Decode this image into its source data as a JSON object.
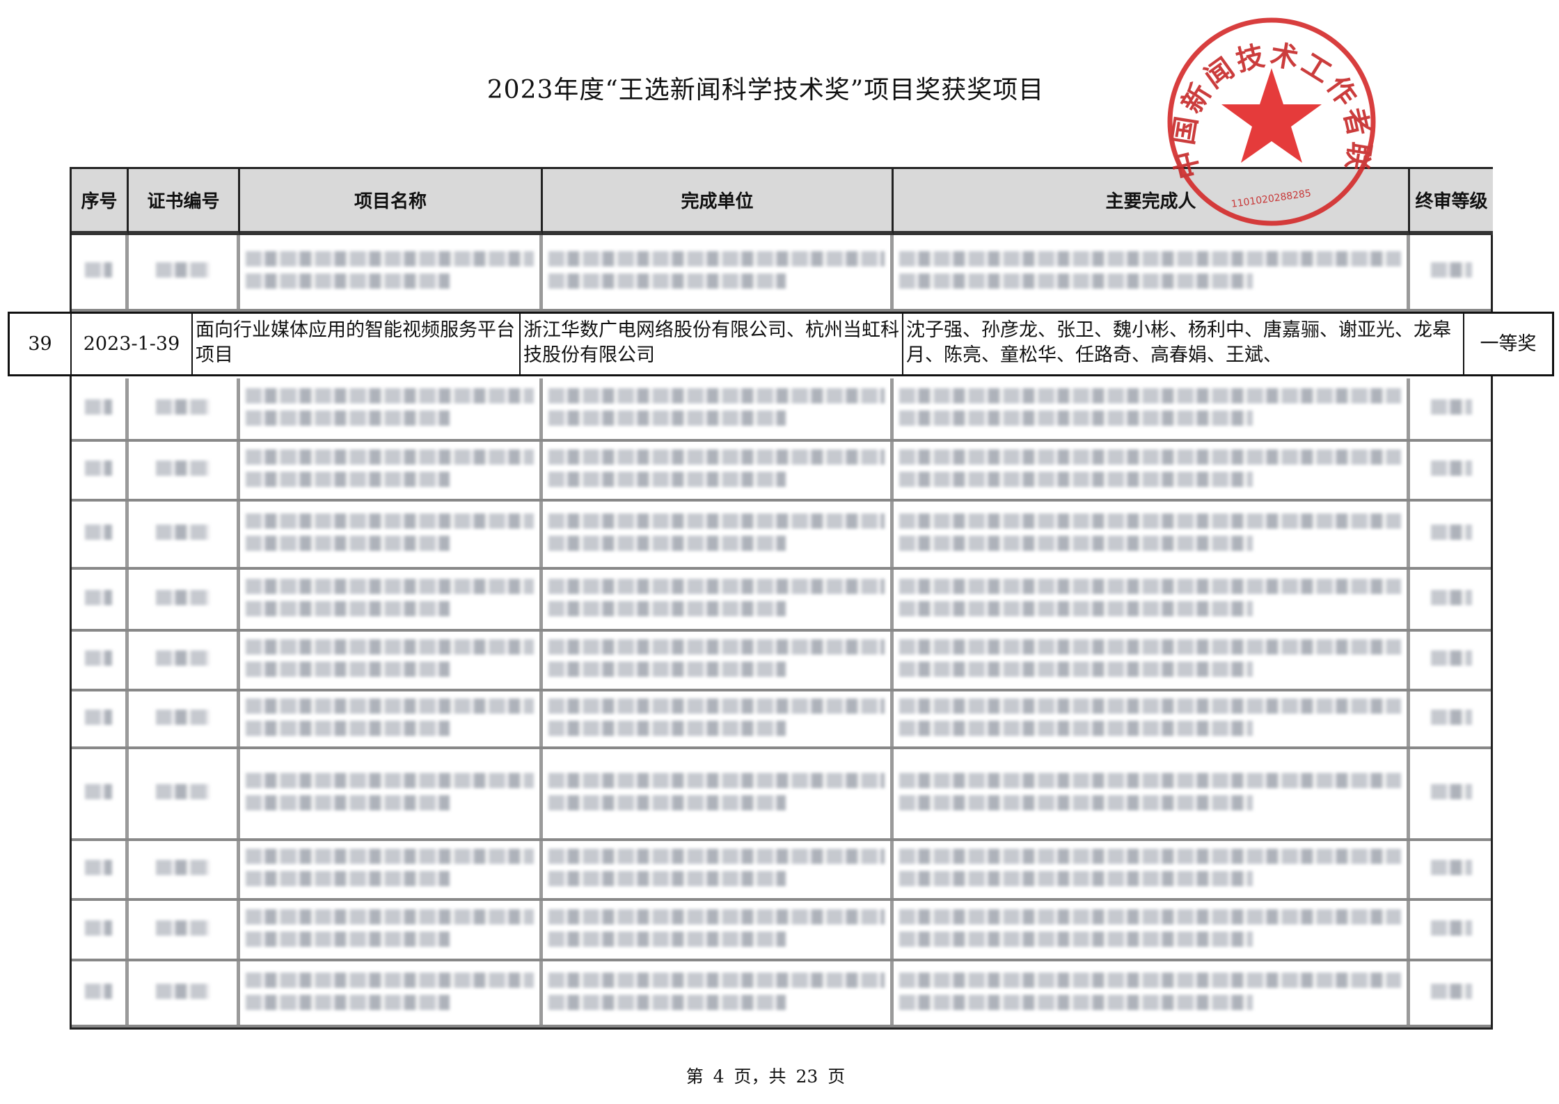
{
  "title": "2023年度“王选新闻科学技术奖”项目奖获奖项目",
  "table": {
    "headers": [
      "序号",
      "证书编号",
      "项目名称",
      "完成单位",
      "主要完成人",
      "终审等级"
    ],
    "highlighted_row": {
      "seq": "39",
      "cert_no": "2023-1-39",
      "project_name": "面向行业媒体应用的智能视频服务平台项目",
      "units": "浙江华数广电网络股份有限公司、杭州当虹科技股份有限公司",
      "persons": "沈子强、孙彦龙、张卫、魏小彬、杨利中、唐嘉骊、谢亚光、龙皋月、陈亮、童松华、任路奇、高春娟、王斌、",
      "level": "一等奖"
    },
    "blurred_rows_note_count": 11
  },
  "stamp": {
    "text": "中国新闻技术工作者联合会",
    "number": "1101020288285",
    "color": "#d42a2a",
    "icon": "star-icon"
  },
  "footer": "第 4 页，共 23 页"
}
